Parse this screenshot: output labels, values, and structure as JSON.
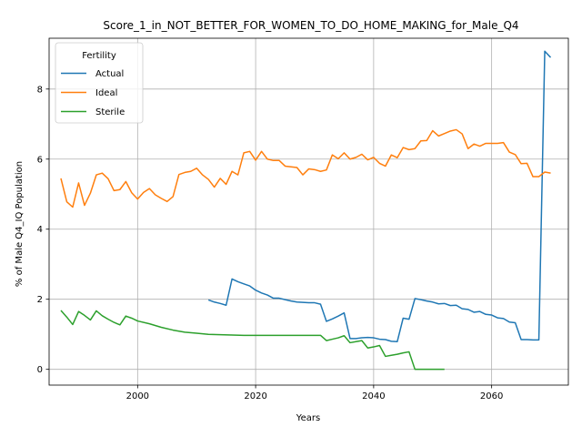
{
  "chart_data": {
    "type": "line",
    "title": "Score_1_in_NOT_BETTER_FOR_WOMEN_TO_DO_HOME_MAKING_for_Male_Q4",
    "xlabel": "Years",
    "ylabel": "% of Male Q4_IQ Population",
    "xlim": [
      1985,
      2073
    ],
    "ylim": [
      -0.45,
      9.45
    ],
    "xticks": [
      2000,
      2020,
      2040,
      2060
    ],
    "yticks": [
      0,
      2,
      4,
      6,
      8
    ],
    "grid": true,
    "legend": {
      "title": "Fertility",
      "placement": "top-left"
    },
    "series": [
      {
        "name": "Actual",
        "color": "#1f77b4",
        "x": [
          2012,
          2013,
          2014,
          2015,
          2016,
          2017,
          2018,
          2019,
          2020,
          2021,
          2022,
          2023,
          2024,
          2025,
          2026,
          2027,
          2028,
          2029,
          2030,
          2031,
          2032,
          2033,
          2034,
          2035,
          2036,
          2037,
          2038,
          2039,
          2040,
          2041,
          2042,
          2043,
          2044,
          2045,
          2046,
          2047,
          2048,
          2049,
          2050,
          2051,
          2052,
          2053,
          2054,
          2055,
          2056,
          2057,
          2058,
          2059,
          2060,
          2061,
          2062,
          2063,
          2064,
          2065,
          2066,
          2067,
          2068,
          2069,
          2070
        ],
        "y": [
          1.98,
          1.92,
          1.88,
          1.83,
          2.58,
          2.5,
          2.44,
          2.38,
          2.26,
          2.18,
          2.12,
          2.03,
          2.03,
          1.99,
          1.95,
          1.92,
          1.91,
          1.9,
          1.9,
          1.86,
          1.37,
          1.44,
          1.52,
          1.61,
          0.88,
          0.88,
          0.9,
          0.91,
          0.9,
          0.86,
          0.85,
          0.8,
          0.79,
          1.46,
          1.43,
          2.02,
          1.99,
          1.95,
          1.92,
          1.87,
          1.88,
          1.82,
          1.83,
          1.73,
          1.71,
          1.63,
          1.65,
          1.57,
          1.55,
          1.47,
          1.45,
          1.35,
          1.33,
          0.85,
          0.85,
          0.84,
          0.84,
          9.08,
          8.9
        ]
      },
      {
        "name": "Ideal",
        "color": "#ff7f0e",
        "x": [
          1987,
          1988,
          1989,
          1990,
          1991,
          1992,
          1993,
          1994,
          1995,
          1996,
          1997,
          1998,
          1999,
          2000,
          2001,
          2002,
          2003,
          2004,
          2005,
          2006,
          2007,
          2008,
          2009,
          2010,
          2011,
          2012,
          2013,
          2014,
          2015,
          2016,
          2017,
          2018,
          2019,
          2020,
          2021,
          2022,
          2023,
          2024,
          2025,
          2026,
          2027,
          2028,
          2029,
          2030,
          2031,
          2032,
          2033,
          2034,
          2035,
          2036,
          2037,
          2038,
          2039,
          2040,
          2041,
          2042,
          2043,
          2044,
          2045,
          2046,
          2047,
          2048,
          2049,
          2050,
          2051,
          2052,
          2053,
          2054,
          2055,
          2056,
          2057,
          2058,
          2059,
          2060,
          2061,
          2062,
          2063,
          2064,
          2065,
          2066,
          2067,
          2068,
          2069,
          2070
        ],
        "y": [
          5.45,
          4.78,
          4.63,
          5.32,
          4.68,
          5.03,
          5.55,
          5.6,
          5.44,
          5.1,
          5.13,
          5.36,
          5.04,
          4.86,
          5.05,
          5.16,
          4.98,
          4.88,
          4.79,
          4.93,
          5.56,
          5.62,
          5.65,
          5.74,
          5.55,
          5.42,
          5.2,
          5.45,
          5.28,
          5.65,
          5.55,
          6.18,
          6.22,
          5.97,
          6.22,
          6.0,
          5.96,
          5.96,
          5.8,
          5.78,
          5.76,
          5.55,
          5.72,
          5.7,
          5.65,
          5.69,
          6.12,
          6.01,
          6.18,
          6.0,
          6.05,
          6.14,
          5.98,
          6.05,
          5.88,
          5.8,
          6.12,
          6.04,
          6.33,
          6.27,
          6.3,
          6.52,
          6.53,
          6.81,
          6.66,
          6.73,
          6.8,
          6.84,
          6.72,
          6.3,
          6.43,
          6.37,
          6.45,
          6.45,
          6.45,
          6.47,
          6.2,
          6.13,
          5.87,
          5.88,
          5.5,
          5.5,
          5.63,
          5.6
        ]
      },
      {
        "name": "Sterile",
        "color": "#2ca02c",
        "x": [
          1987,
          1988,
          1989,
          1990,
          1991,
          1992,
          1993,
          1994,
          1995,
          1996,
          1997,
          1998,
          1999,
          2000,
          2002,
          2004,
          2006,
          2008,
          2010,
          2012,
          2014,
          2016,
          2018,
          2020,
          2022,
          2024,
          2026,
          2028,
          2030,
          2031,
          2032,
          2033,
          2034,
          2035,
          2036,
          2037,
          2038,
          2039,
          2040,
          2041,
          2042,
          2043,
          2044,
          2045,
          2046,
          2047,
          2048,
          2050,
          2052
        ],
        "y": [
          1.68,
          1.49,
          1.28,
          1.65,
          1.54,
          1.41,
          1.67,
          1.53,
          1.43,
          1.34,
          1.27,
          1.52,
          1.46,
          1.38,
          1.3,
          1.2,
          1.12,
          1.06,
          1.03,
          1.0,
          0.99,
          0.98,
          0.97,
          0.97,
          0.97,
          0.97,
          0.97,
          0.97,
          0.97,
          0.97,
          0.82,
          0.86,
          0.9,
          0.96,
          0.76,
          0.79,
          0.82,
          0.61,
          0.64,
          0.68,
          0.37,
          0.4,
          0.43,
          0.47,
          0.5,
          0.0,
          0.0,
          0.0,
          0.0
        ]
      }
    ]
  }
}
